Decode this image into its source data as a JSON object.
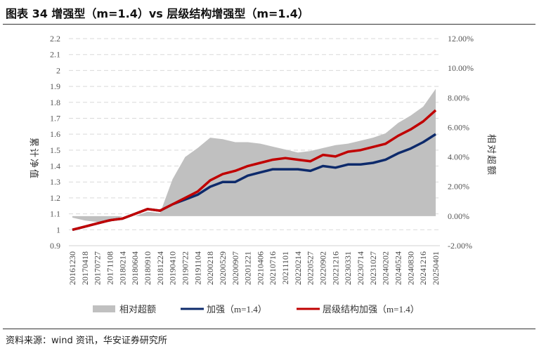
{
  "title": "图表 34  增强型（m=1.4）vs 层级结构增强型（m=1.4）",
  "source": "资料来源：wind 资讯，华安证券研究所",
  "chart_data": {
    "type": "line",
    "title": "图表 34  增强型（m=1.4）vs 层级结构增强型（m=1.4）",
    "ylabel": "累计净值",
    "y2label": "相对超额",
    "ylim": [
      0.9,
      2.2
    ],
    "yticks": [
      "0.9",
      "1",
      "1.1",
      "1.2",
      "1.3",
      "1.4",
      "1.5",
      "1.6",
      "1.7",
      "1.8",
      "1.9",
      "2",
      "2.1",
      "2.2"
    ],
    "y2lim": [
      -2,
      12
    ],
    "y2ticks": [
      "-2.00%",
      "0.00%",
      "2.00%",
      "4.00%",
      "6.00%",
      "8.00%",
      "10.00%",
      "12.00%"
    ],
    "grid": true,
    "legend_position": "bottom",
    "x": [
      "20161230",
      "20170418",
      "20170727",
      "20171108",
      "20180214",
      "20180604",
      "20180910",
      "20181224",
      "20190410",
      "20190722",
      "20191104",
      "20200218",
      "20200529",
      "20200907",
      "20201221",
      "20210406",
      "20210716",
      "20211101",
      "20220214",
      "20220527",
      "20220902",
      "20221216",
      "20230331",
      "20230714",
      "20231027",
      "20240202",
      "20240524",
      "20240830",
      "20241216",
      "20250401"
    ],
    "series": [
      {
        "name": "相对超额",
        "type": "area",
        "axis": "right",
        "color": "#c0c0c0",
        "values": [
          -0.1,
          -0.3,
          -0.4,
          -0.4,
          0.0,
          0.0,
          0.3,
          0.2,
          2.5,
          4.0,
          4.6,
          5.3,
          5.2,
          5.0,
          5.0,
          4.9,
          4.7,
          4.5,
          4.3,
          4.4,
          4.6,
          4.8,
          4.9,
          5.1,
          5.3,
          5.6,
          6.3,
          6.8,
          7.4,
          8.6
        ]
      },
      {
        "name": "加强（m=1.4）",
        "type": "line",
        "axis": "left",
        "color": "#0d2a6b",
        "values": [
          1.0,
          1.02,
          1.04,
          1.06,
          1.07,
          1.1,
          1.13,
          1.12,
          1.16,
          1.19,
          1.22,
          1.27,
          1.3,
          1.3,
          1.34,
          1.36,
          1.38,
          1.38,
          1.38,
          1.37,
          1.4,
          1.39,
          1.41,
          1.41,
          1.42,
          1.44,
          1.48,
          1.51,
          1.55,
          1.6
        ]
      },
      {
        "name": "层级结构加强（m=1.4）",
        "type": "line",
        "axis": "left",
        "color": "#c00000",
        "values": [
          1.0,
          1.02,
          1.04,
          1.06,
          1.07,
          1.1,
          1.13,
          1.12,
          1.16,
          1.2,
          1.24,
          1.31,
          1.35,
          1.37,
          1.4,
          1.42,
          1.44,
          1.45,
          1.44,
          1.43,
          1.47,
          1.46,
          1.49,
          1.5,
          1.52,
          1.54,
          1.59,
          1.63,
          1.68,
          1.75
        ]
      }
    ]
  }
}
